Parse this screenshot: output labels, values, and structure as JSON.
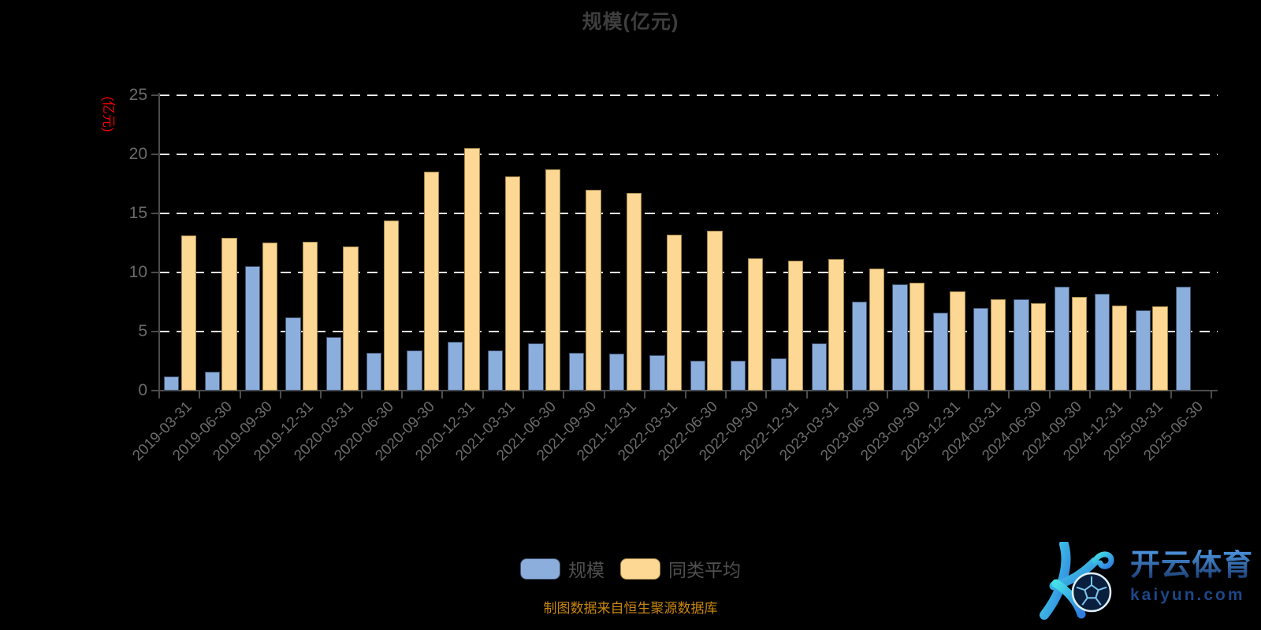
{
  "title": "规模(亿元)",
  "y_axis": {
    "name": "(亿元)",
    "name_color": "#f00000",
    "ticks": [
      0,
      5,
      10,
      15,
      20,
      25
    ]
  },
  "legend": {
    "items": [
      {
        "label": "规模",
        "color": "#8caedc",
        "border": "#3d4f6b"
      },
      {
        "label": "同类平均",
        "color": "#fdd794",
        "border": "#a08449"
      }
    ]
  },
  "footer": {
    "text": "制图数据来自恒生聚源数据库",
    "color": "#c8860d"
  },
  "logo": {
    "brand": "开云体育",
    "domain": "kaiyun.com"
  },
  "colors": {
    "background": "#000000",
    "grid": "#e8e8e8",
    "axis": "#4c4c4c",
    "tick_label": "#6b6b6b",
    "title": "#3e3e3e",
    "legend_text": "#4f4f4f",
    "bar_scale": "#8caedc",
    "bar_peer_avg": "#fdd794"
  },
  "chart_data": {
    "type": "bar",
    "title": "规模(亿元)",
    "xlabel": "",
    "ylabel": "(亿元)",
    "ylim": [
      0,
      25
    ],
    "y_ticks": [
      0,
      5,
      10,
      15,
      20,
      25
    ],
    "grid": true,
    "legend_position": "bottom",
    "categories": [
      "2019-03-31",
      "2019-06-30",
      "2019-09-30",
      "2019-12-31",
      "2020-03-31",
      "2020-06-30",
      "2020-09-30",
      "2020-12-31",
      "2021-03-31",
      "2021-06-30",
      "2021-09-30",
      "2021-12-31",
      "2022-03-31",
      "2022-06-30",
      "2022-09-30",
      "2022-12-31",
      "2023-03-31",
      "2023-06-30",
      "2023-09-30",
      "2023-12-31",
      "2024-03-31",
      "2024-06-30",
      "2024-09-30",
      "2024-12-31",
      "2025-03-31",
      "2025-06-30"
    ],
    "series": [
      {
        "name": "规模",
        "color": "#8caedc",
        "values": [
          1.2,
          1.6,
          10.5,
          6.2,
          4.5,
          3.2,
          3.4,
          4.1,
          3.4,
          4.0,
          3.2,
          3.1,
          3.0,
          2.5,
          2.5,
          2.7,
          4.0,
          7.5,
          9.0,
          6.6,
          7.0,
          7.7,
          8.8,
          8.2,
          6.8,
          8.8
        ]
      },
      {
        "name": "同类平均",
        "color": "#fdd794",
        "values": [
          13.1,
          12.9,
          12.5,
          12.6,
          12.2,
          14.4,
          18.5,
          20.5,
          18.1,
          18.7,
          17.0,
          16.7,
          13.2,
          13.5,
          11.2,
          11.0,
          11.1,
          10.3,
          9.1,
          8.4,
          7.7,
          7.4,
          7.9,
          7.2,
          7.1,
          null
        ]
      }
    ]
  }
}
